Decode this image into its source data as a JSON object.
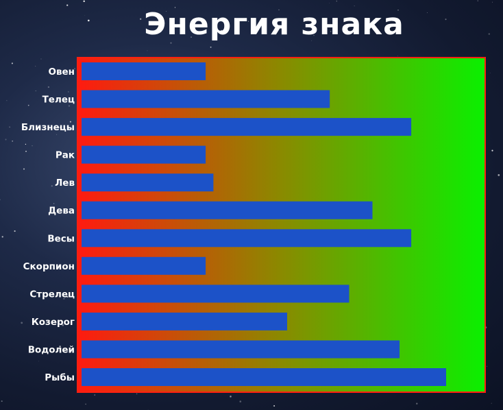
{
  "title": "Энергия знака",
  "colors": {
    "bar": "#1c52c8",
    "gradient_start": "#ff1a10",
    "gradient_mid": "#8a8a00",
    "gradient_end": "#0af000",
    "frame": "#ff2010",
    "label": "#ffffff"
  },
  "chart_data": {
    "type": "bar",
    "orientation": "horizontal",
    "title": "Энергия знака",
    "xlabel": "",
    "ylabel": "",
    "xlim": [
      0,
      100
    ],
    "grid": false,
    "legend": "none",
    "categories": [
      "Овен",
      "Телец",
      "Близнецы",
      "Рак",
      "Лев",
      "Дева",
      "Весы",
      "Скорпион",
      "Стрелец",
      "Козерог",
      "Водолей",
      "Рыбы"
    ],
    "values": [
      32,
      64,
      85,
      32,
      34,
      75,
      85,
      32,
      69,
      53,
      82,
      94
    ]
  }
}
